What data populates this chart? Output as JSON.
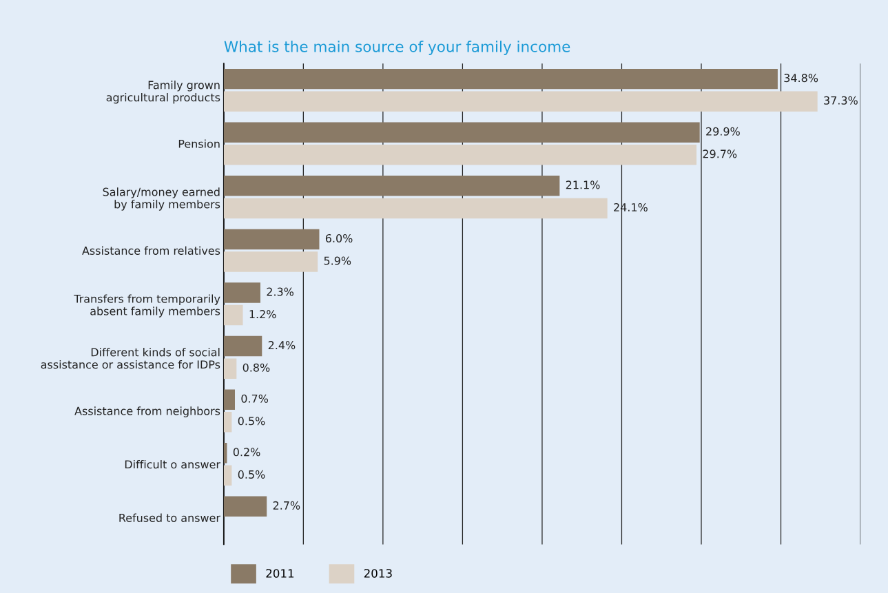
{
  "chart_data": {
    "type": "bar",
    "orientation": "horizontal",
    "title": "What is the main source of your family income",
    "categories": [
      "Family grown\nagricultural products",
      "Pension",
      "Salary/money earned\nby family members",
      "Assistance from relatives",
      "Transfers from temporarily\nabsent family members",
      "Different kinds of social\nassistance or assistance for IDPs",
      "Assistance from neighbors",
      "Difficult o answer",
      "Refused to answer"
    ],
    "series": [
      {
        "name": "2011",
        "color": "#8a7a66",
        "values": [
          34.8,
          29.9,
          21.1,
          6.0,
          2.3,
          2.4,
          0.7,
          0.2,
          2.7
        ],
        "value_labels": [
          "34.8%",
          "29.9%",
          "21.1%",
          "6.0%",
          "2.3%",
          "2.4%",
          "0.7%",
          "0.2%",
          "2.7%"
        ]
      },
      {
        "name": "2013",
        "color": "#dcd2c6",
        "values": [
          37.3,
          29.7,
          24.1,
          5.9,
          1.2,
          0.8,
          0.5,
          0.5,
          null
        ],
        "value_labels": [
          "37.3%",
          "29.7%",
          "24.1%",
          "5.9%",
          "1.2%",
          "0.8%",
          "0.5%",
          "0.5%",
          null
        ]
      }
    ],
    "xlim": [
      0,
      40
    ],
    "xticks": [
      {
        "value": 0,
        "label": null
      },
      {
        "value": 5,
        "label": null
      },
      {
        "value": 10,
        "label": null
      },
      {
        "value": 15,
        "label": null
      },
      {
        "value": 20,
        "label": null
      },
      {
        "value": 25,
        "label": null
      },
      {
        "value": 30,
        "label": null
      },
      {
        "value": 35,
        "label": null
      },
      {
        "value": 40,
        "label": null
      }
    ],
    "grid": "x",
    "legend": "bottom left",
    "tick_labels": "y"
  }
}
